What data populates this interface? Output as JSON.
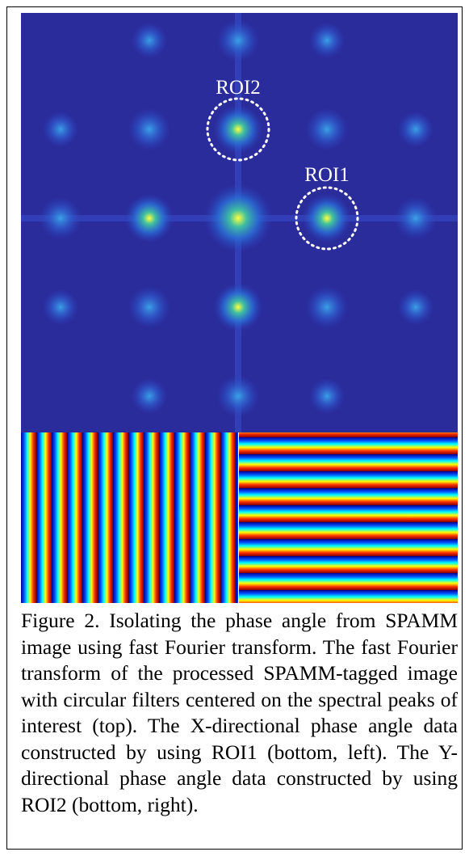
{
  "figure": {
    "labels": {
      "roi2": "ROI2",
      "roi1": "ROI1"
    },
    "caption": "Figure 2. Isolating the phase angle from SPAMM image using fast Fourier transform. The fast Fourier transform of the processed SPAMM-tagged image with circular filters centered on the spectral peaks of interest (top). The X-directional phase angle data constructed by using ROI1 (bottom, left). The Y-directional phase angle data constructed by using ROI2 (bottom, right)."
  }
}
